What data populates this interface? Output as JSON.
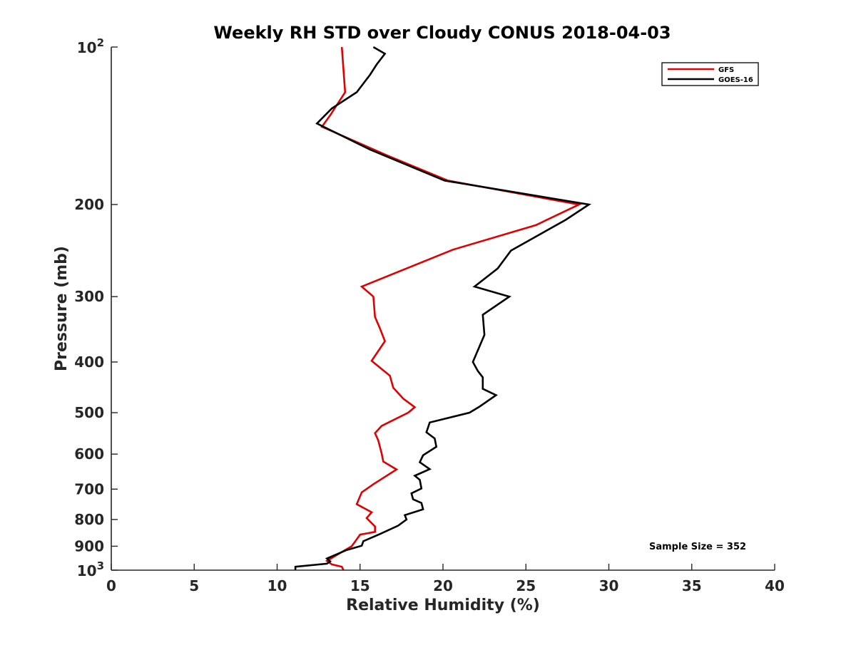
{
  "chart_data": {
    "type": "line",
    "title": "Weekly RH STD over Cloudy CONUS 2018-04-03",
    "xlabel": "Relative Humidity (%)",
    "ylabel": "Pressure (mb)",
    "xlim": [
      0,
      40
    ],
    "ylim": [
      100,
      1000
    ],
    "y_scale": "log",
    "y_reversed": true,
    "grid": false,
    "legend_position": "top-right",
    "annotation": "Sample Size = 352",
    "x_ticks": [
      {
        "value": 0,
        "label": "0"
      },
      {
        "value": 5,
        "label": "5"
      },
      {
        "value": 10,
        "label": "10"
      },
      {
        "value": 15,
        "label": "15"
      },
      {
        "value": 20,
        "label": "20"
      },
      {
        "value": 25,
        "label": "25"
      },
      {
        "value": 30,
        "label": "30"
      },
      {
        "value": 35,
        "label": "35"
      },
      {
        "value": 40,
        "label": "40"
      }
    ],
    "y_ticks": [
      {
        "value": 100,
        "label": "10",
        "sup": "2"
      },
      {
        "value": 200,
        "label": "200"
      },
      {
        "value": 300,
        "label": "300"
      },
      {
        "value": 400,
        "label": "400"
      },
      {
        "value": 500,
        "label": "500"
      },
      {
        "value": 600,
        "label": "600"
      },
      {
        "value": 700,
        "label": "700"
      },
      {
        "value": 800,
        "label": "800"
      },
      {
        "value": 900,
        "label": "900"
      },
      {
        "value": 1000,
        "label": "10",
        "sup": "3"
      }
    ],
    "series": [
      {
        "name": "GFS",
        "color": "#e00000",
        "points": [
          {
            "x": 14.0,
            "p": 1000
          },
          {
            "x": 13.9,
            "p": 985
          },
          {
            "x": 13.3,
            "p": 975
          },
          {
            "x": 13.0,
            "p": 960
          },
          {
            "x": 13.6,
            "p": 935
          },
          {
            "x": 14.5,
            "p": 900
          },
          {
            "x": 15.0,
            "p": 855
          },
          {
            "x": 15.9,
            "p": 845
          },
          {
            "x": 15.9,
            "p": 825
          },
          {
            "x": 15.4,
            "p": 795
          },
          {
            "x": 15.7,
            "p": 775
          },
          {
            "x": 14.8,
            "p": 748
          },
          {
            "x": 15.1,
            "p": 710
          },
          {
            "x": 15.8,
            "p": 685
          },
          {
            "x": 17.2,
            "p": 642
          },
          {
            "x": 16.4,
            "p": 620
          },
          {
            "x": 16.3,
            "p": 598
          },
          {
            "x": 16.1,
            "p": 565
          },
          {
            "x": 15.9,
            "p": 547
          },
          {
            "x": 16.3,
            "p": 530
          },
          {
            "x": 17.9,
            "p": 500
          },
          {
            "x": 18.3,
            "p": 488
          },
          {
            "x": 17.6,
            "p": 470
          },
          {
            "x": 17.0,
            "p": 448
          },
          {
            "x": 16.8,
            "p": 425
          },
          {
            "x": 15.7,
            "p": 398
          },
          {
            "x": 16.5,
            "p": 365
          },
          {
            "x": 16.2,
            "p": 345
          },
          {
            "x": 15.9,
            "p": 328
          },
          {
            "x": 15.8,
            "p": 300
          },
          {
            "x": 15.1,
            "p": 287
          },
          {
            "x": 20.6,
            "p": 244
          },
          {
            "x": 25.6,
            "p": 219
          },
          {
            "x": 28.2,
            "p": 200
          },
          {
            "x": 20.3,
            "p": 180
          },
          {
            "x": 16.6,
            "p": 161
          },
          {
            "x": 12.7,
            "p": 142
          },
          {
            "x": 13.2,
            "p": 135
          },
          {
            "x": 14.1,
            "p": 122
          },
          {
            "x": 13.9,
            "p": 100
          }
        ]
      },
      {
        "name": "GOES-16",
        "color": "#000000",
        "points": [
          {
            "x": 11.1,
            "p": 1000
          },
          {
            "x": 11.1,
            "p": 985
          },
          {
            "x": 13.0,
            "p": 972
          },
          {
            "x": 13.2,
            "p": 962
          },
          {
            "x": 13.0,
            "p": 950
          },
          {
            "x": 14.2,
            "p": 915
          },
          {
            "x": 15.1,
            "p": 898
          },
          {
            "x": 15.2,
            "p": 880
          },
          {
            "x": 16.2,
            "p": 853
          },
          {
            "x": 17.3,
            "p": 822
          },
          {
            "x": 17.8,
            "p": 800
          },
          {
            "x": 17.7,
            "p": 785
          },
          {
            "x": 18.8,
            "p": 765
          },
          {
            "x": 18.7,
            "p": 744
          },
          {
            "x": 18.2,
            "p": 732
          },
          {
            "x": 18.1,
            "p": 713
          },
          {
            "x": 18.7,
            "p": 698
          },
          {
            "x": 18.6,
            "p": 672
          },
          {
            "x": 18.3,
            "p": 660
          },
          {
            "x": 19.2,
            "p": 641
          },
          {
            "x": 18.6,
            "p": 622
          },
          {
            "x": 18.8,
            "p": 603
          },
          {
            "x": 19.6,
            "p": 581
          },
          {
            "x": 19.5,
            "p": 560
          },
          {
            "x": 19.0,
            "p": 545
          },
          {
            "x": 19.2,
            "p": 522
          },
          {
            "x": 21.6,
            "p": 500
          },
          {
            "x": 22.2,
            "p": 487
          },
          {
            "x": 23.2,
            "p": 463
          },
          {
            "x": 22.4,
            "p": 450
          },
          {
            "x": 22.4,
            "p": 428
          },
          {
            "x": 22.1,
            "p": 416
          },
          {
            "x": 21.8,
            "p": 400
          },
          {
            "x": 22.5,
            "p": 355
          },
          {
            "x": 22.4,
            "p": 325
          },
          {
            "x": 24.0,
            "p": 300
          },
          {
            "x": 21.9,
            "p": 287
          },
          {
            "x": 23.3,
            "p": 265
          },
          {
            "x": 24.1,
            "p": 245
          },
          {
            "x": 27.4,
            "p": 214
          },
          {
            "x": 28.8,
            "p": 200
          },
          {
            "x": 20.1,
            "p": 180
          },
          {
            "x": 15.6,
            "p": 157
          },
          {
            "x": 12.4,
            "p": 140
          },
          {
            "x": 13.3,
            "p": 131
          },
          {
            "x": 14.8,
            "p": 122
          },
          {
            "x": 15.6,
            "p": 113
          },
          {
            "x": 16.0,
            "p": 108
          },
          {
            "x": 16.5,
            "p": 103
          },
          {
            "x": 15.8,
            "p": 100
          }
        ]
      }
    ]
  }
}
